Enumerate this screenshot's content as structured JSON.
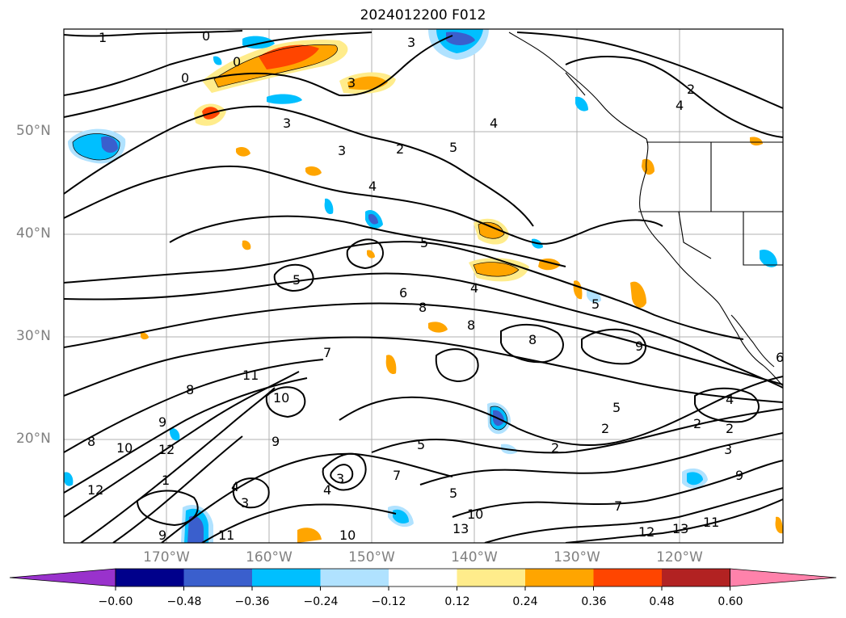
{
  "title": "2024012200 F012",
  "lat_labels": [
    "50°N",
    "40°N",
    "30°N",
    "20°N"
  ],
  "lon_labels": [
    "170°W",
    "160°W",
    "150°W",
    "140°W",
    "130°W",
    "120°W"
  ],
  "colorbar": {
    "ticks": [
      "−0.60",
      "−0.48",
      "−0.36",
      "−0.24",
      "−0.12",
      "0.12",
      "0.24",
      "0.36",
      "0.48",
      "0.60"
    ],
    "colors": [
      "#9932cc",
      "#00008b",
      "#3a5fcd",
      "#00bfff",
      "#b0e2ff",
      "#ffffff",
      "#ffec8b",
      "#ffa500",
      "#ff4500",
      "#b22222",
      "#ff82ab"
    ]
  },
  "contour_labels": [
    "1",
    "0",
    "0",
    "0",
    "3",
    "4",
    "5",
    "2",
    "3",
    "3",
    "3",
    "2",
    "4",
    "4",
    "5",
    "5",
    "6",
    "8",
    "8",
    "8",
    "9",
    "4",
    "5",
    "2",
    "2",
    "2",
    "4",
    "5",
    "3",
    "2",
    "8",
    "9",
    "10",
    "12",
    "11",
    "7",
    "9",
    "8",
    "10",
    "12",
    "13",
    "11",
    "10",
    "9",
    "4",
    "3",
    "7",
    "5",
    "1",
    "10",
    "12",
    "13",
    "11",
    "9",
    "7",
    "5",
    "3",
    "4",
    "6"
  ]
}
